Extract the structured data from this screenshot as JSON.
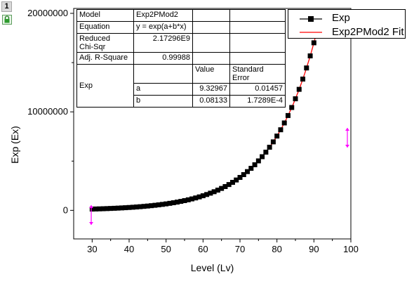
{
  "layer": {
    "number": "1",
    "lock_icon": "lock-icon"
  },
  "chart_data": {
    "type": "scatter",
    "xlabel": "Level (Lv)",
    "ylabel": "Exp (Ex)",
    "xlim": [
      25,
      100
    ],
    "ylim": [
      -2900000,
      20500000
    ],
    "x_ticks": [
      30,
      40,
      50,
      60,
      70,
      80,
      90,
      100
    ],
    "y_ticks": [
      0,
      10000000,
      20000000
    ],
    "grid": false,
    "legend_position": "top-right",
    "series": [
      {
        "name": "Exp",
        "kind": "scatter",
        "marker": "square",
        "color": "#000000",
        "x_start": 30,
        "x_end": 91,
        "formula": "y = exp(a+b*x)",
        "params": {
          "a": 9.32967,
          "b": 0.08133
        }
      },
      {
        "name": "Exp2PMod2 Fit",
        "kind": "line",
        "color": "#ff0000",
        "formula": "y = exp(a+b*x)",
        "params": {
          "a": 9.32967,
          "b": 0.08133
        }
      }
    ],
    "marker_glyph_color": "#ff00ff",
    "fit_table": {
      "model_label": "Model",
      "model_value": "Exp2PMod2",
      "equation_label": "Equation",
      "equation_value": "y = exp(a+b*x)",
      "chisq_label_1": "Reduced",
      "chisq_label_2": "Chi-Sqr",
      "chisq_value": "2.17296E9",
      "r2_label": "Adj. R-Square",
      "r2_value": "0.99988",
      "value_header": "Value",
      "se_header": "Standard Error",
      "group_label": "Exp",
      "params": [
        {
          "name": "a",
          "value": "9.32967",
          "se": "0.01457"
        },
        {
          "name": "b",
          "value": "0.08133",
          "se": "1.7289E-4"
        }
      ]
    }
  }
}
